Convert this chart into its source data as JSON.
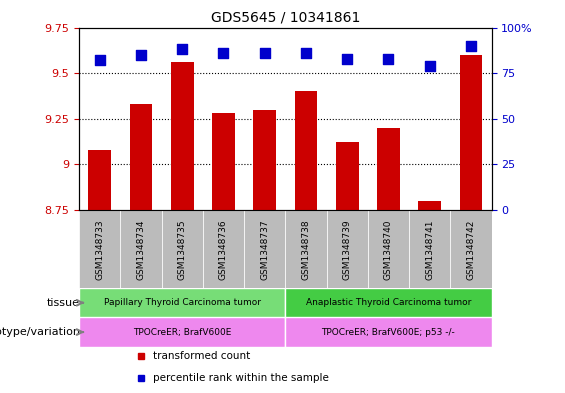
{
  "title": "GDS5645 / 10341861",
  "samples": [
    "GSM1348733",
    "GSM1348734",
    "GSM1348735",
    "GSM1348736",
    "GSM1348737",
    "GSM1348738",
    "GSM1348739",
    "GSM1348740",
    "GSM1348741",
    "GSM1348742"
  ],
  "transformed_counts": [
    9.08,
    9.33,
    9.56,
    9.28,
    9.3,
    9.4,
    9.12,
    9.2,
    8.8,
    9.6
  ],
  "percentile_ranks": [
    82,
    85,
    88,
    86,
    86,
    86,
    83,
    83,
    79,
    90
  ],
  "ylim_left": [
    8.75,
    9.75
  ],
  "ylim_right": [
    0,
    100
  ],
  "yticks_left": [
    8.75,
    9.0,
    9.25,
    9.5,
    9.75
  ],
  "ytick_labels_left": [
    "8.75",
    "9",
    "9.25",
    "9.5",
    "9.75"
  ],
  "yticks_right": [
    0,
    25,
    50,
    75,
    100
  ],
  "ytick_labels_right": [
    "0",
    "25",
    "50",
    "75",
    "100%"
  ],
  "bar_color": "#cc0000",
  "dot_color": "#0000cc",
  "tissue_groups": [
    {
      "label": "Papillary Thyroid Carcinoma tumor",
      "start": 0,
      "end": 5,
      "color": "#77dd77"
    },
    {
      "label": "Anaplastic Thyroid Carcinoma tumor",
      "start": 5,
      "end": 10,
      "color": "#44cc44"
    }
  ],
  "genotype_groups": [
    {
      "label": "TPOCreER; BrafV600E",
      "start": 0,
      "end": 5,
      "color": "#ee88ee"
    },
    {
      "label": "TPOCreER; BrafV600E; p53 -/-",
      "start": 5,
      "end": 10,
      "color": "#ee88ee"
    }
  ],
  "tissue_label": "tissue",
  "genotype_label": "genotype/variation",
  "legend_items": [
    {
      "color": "#cc0000",
      "label": "transformed count"
    },
    {
      "color": "#0000cc",
      "label": "percentile rank within the sample"
    }
  ],
  "bar_width": 0.55,
  "dot_size": 55,
  "sample_bg_color": "#bbbbbb",
  "plot_bg_color": "#ffffff"
}
